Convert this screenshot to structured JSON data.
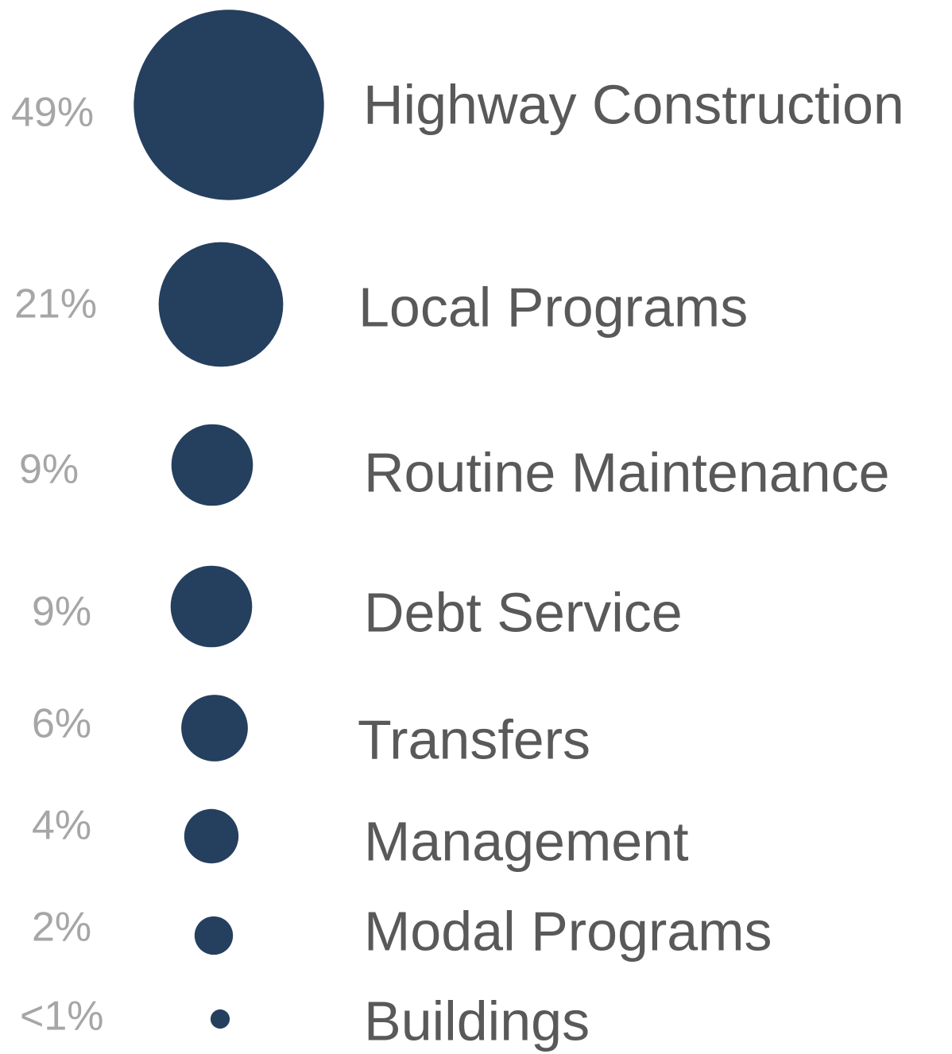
{
  "chart_data": {
    "type": "bubble",
    "categories": [
      "Highway Construction",
      "Local Programs",
      "Routine Maintenance",
      "Debt Service",
      "Transfers",
      "Management",
      "Modal Programs",
      "Buildings"
    ],
    "values": [
      49,
      21,
      9,
      9,
      6,
      4,
      2,
      0.5
    ],
    "value_labels": [
      "49%",
      "21%",
      "9%",
      "9%",
      "6%",
      "4%",
      "2%",
      "<1%"
    ],
    "color": "#253f5f"
  }
}
